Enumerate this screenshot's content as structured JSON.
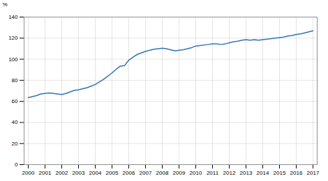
{
  "chart_data": {
    "type": "line",
    "ylabel": "%",
    "x": [
      2000.0,
      2000.25,
      2000.5,
      2000.75,
      2001.0,
      2001.25,
      2001.5,
      2001.75,
      2002.0,
      2002.25,
      2002.5,
      2002.75,
      2003.0,
      2003.25,
      2003.5,
      2003.75,
      2004.0,
      2004.25,
      2004.5,
      2004.75,
      2005.0,
      2005.25,
      2005.5,
      2005.75,
      2006.0,
      2006.25,
      2006.5,
      2006.75,
      2007.0,
      2007.25,
      2007.5,
      2007.75,
      2008.0,
      2008.25,
      2008.5,
      2008.75,
      2009.0,
      2009.25,
      2009.5,
      2009.75,
      2010.0,
      2010.25,
      2010.5,
      2010.75,
      2011.0,
      2011.25,
      2011.5,
      2011.75,
      2012.0,
      2012.25,
      2012.5,
      2012.75,
      2013.0,
      2013.25,
      2013.5,
      2013.75,
      2014.0,
      2014.25,
      2014.5,
      2014.75,
      2015.0,
      2015.25,
      2015.5,
      2015.75,
      2016.0,
      2016.25,
      2016.5,
      2016.75,
      2017.0
    ],
    "values": [
      63.5,
      64.5,
      65.5,
      67.0,
      67.5,
      68.0,
      67.5,
      67.0,
      66.5,
      67.5,
      69.0,
      70.5,
      71.0,
      72.0,
      73.0,
      74.5,
      76.0,
      78.5,
      81.0,
      84.0,
      87.0,
      90.5,
      93.5,
      94.0,
      99.0,
      102.0,
      104.5,
      106.0,
      107.5,
      108.5,
      109.5,
      110.0,
      110.5,
      110.0,
      109.0,
      108.0,
      108.5,
      109.0,
      110.0,
      111.0,
      112.5,
      113.0,
      113.5,
      114.0,
      114.5,
      114.5,
      114.0,
      114.5,
      115.5,
      116.5,
      117.0,
      118.0,
      118.5,
      118.0,
      118.5,
      118.0,
      118.5,
      119.0,
      119.5,
      120.0,
      120.5,
      121.0,
      122.0,
      122.5,
      123.5,
      124.0,
      125.0,
      126.0,
      127.0
    ],
    "color": "#2e75b6",
    "xlim": [
      1999.75,
      2017.25
    ],
    "xticks": [
      2000,
      2001,
      2002,
      2003,
      2004,
      2005,
      2006,
      2007,
      2008,
      2009,
      2010,
      2011,
      2012,
      2013,
      2014,
      2015,
      2016,
      2017
    ],
    "ylim": [
      0,
      140
    ],
    "yticks": [
      0,
      20,
      40,
      60,
      80,
      100,
      120,
      140
    ],
    "grid": true
  }
}
